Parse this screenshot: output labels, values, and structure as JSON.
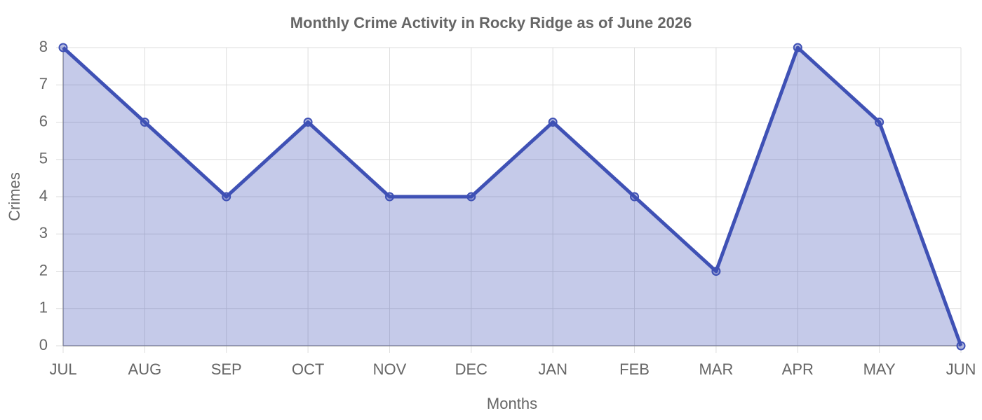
{
  "chart_data": {
    "type": "area",
    "title": "Monthly Crime Activity in Rocky Ridge as of June 2026",
    "x_label": "Months",
    "y_label": "Crimes",
    "categories": [
      "JUL",
      "AUG",
      "SEP",
      "OCT",
      "NOV",
      "DEC",
      "JAN",
      "FEB",
      "MAR",
      "APR",
      "MAY",
      "JUN"
    ],
    "values": [
      8,
      6,
      4,
      6,
      4,
      4,
      6,
      4,
      2,
      8,
      6,
      0
    ],
    "color": "#3f51b5",
    "ylim": [
      0,
      8
    ],
    "yticks": [
      0,
      1,
      2,
      3,
      4,
      5,
      6,
      7,
      8
    ],
    "grid": true
  }
}
